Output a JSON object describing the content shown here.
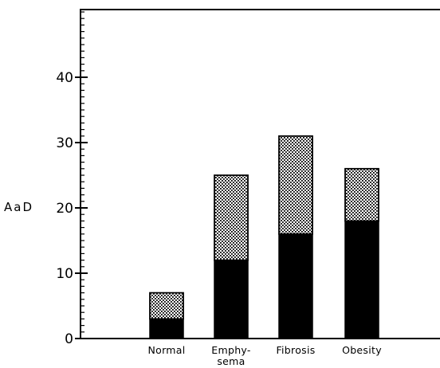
{
  "chart_data": {
    "type": "bar",
    "stacked": true,
    "categories": [
      "Normal",
      "Emphy-\nsema",
      "Fibrosis",
      "Obesity"
    ],
    "series": [
      {
        "values": [
          3,
          12,
          16,
          18
        ],
        "color": "#000000",
        "pattern": "solid"
      },
      {
        "values": [
          4,
          13,
          15,
          8
        ],
        "color": "#cccccc",
        "pattern": "dotted"
      }
    ],
    "totals": [
      7,
      25,
      31,
      26
    ],
    "ylabel": "AaD",
    "xlabel": "",
    "title": "",
    "ylim": [
      0,
      50
    ],
    "yticks": [
      0,
      10,
      20,
      30,
      40
    ],
    "ytick_labels": [
      "0",
      "10",
      "20",
      "30",
      "40"
    ],
    "minor_tick_step": 1,
    "grid": false
  }
}
